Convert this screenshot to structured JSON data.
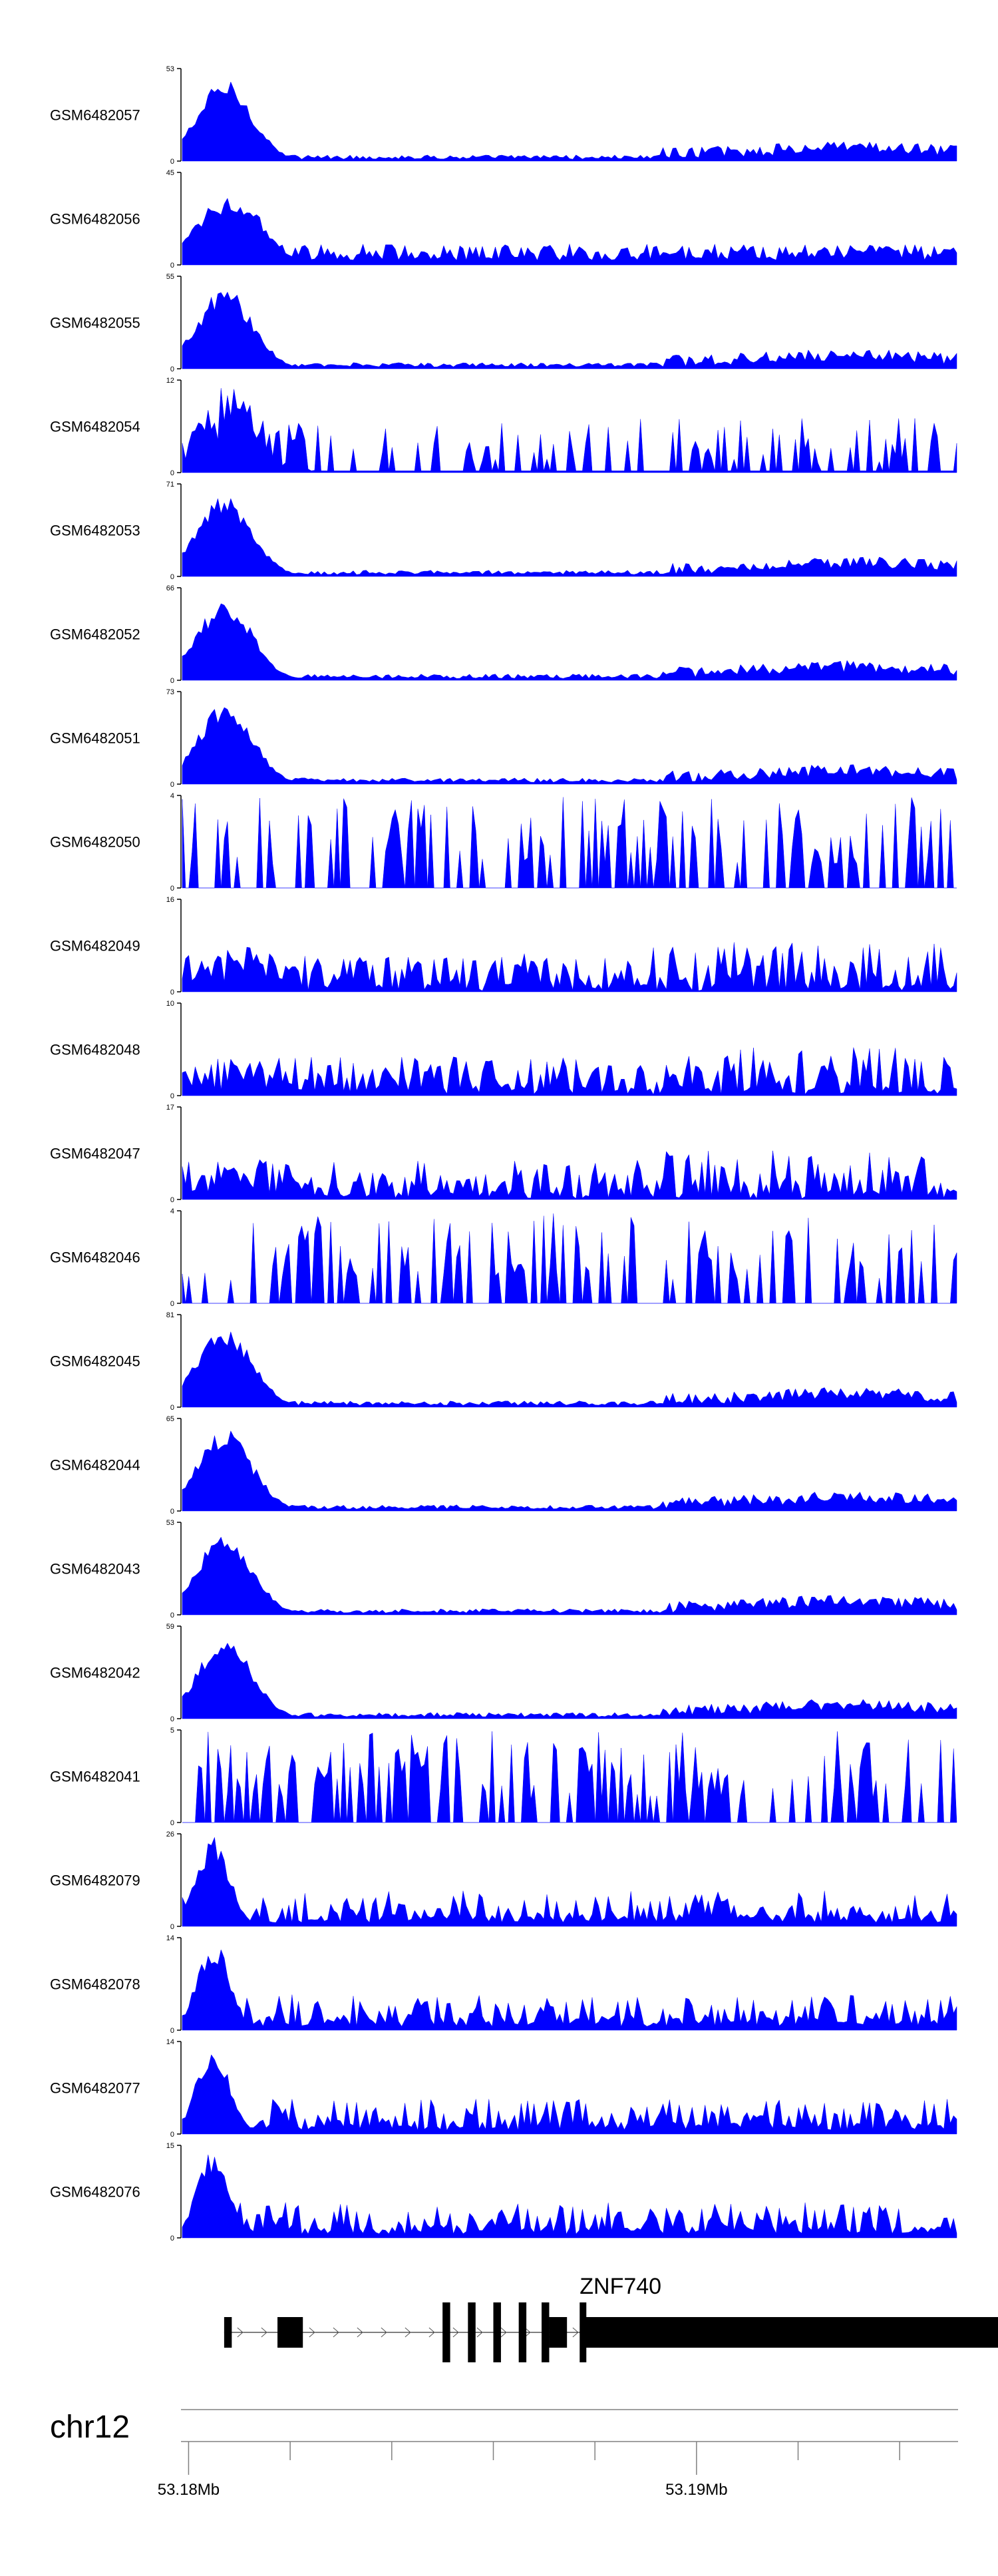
{
  "chart_data": {
    "type": "area",
    "colors": {
      "signal": "#0000ff",
      "axis": "#000000",
      "gene": "#000000",
      "chrom_line": "#808080"
    },
    "tracks": [
      {
        "name": "GSM6482057",
        "ymax": 53,
        "profile": "early_high"
      },
      {
        "name": "GSM6482056",
        "ymax": 45,
        "profile": "early_high_noisy"
      },
      {
        "name": "GSM6482055",
        "ymax": 55,
        "profile": "early_high"
      },
      {
        "name": "GSM6482054",
        "ymax": 12,
        "profile": "sparse_spiky"
      },
      {
        "name": "GSM6482053",
        "ymax": 71,
        "profile": "early_high"
      },
      {
        "name": "GSM6482052",
        "ymax": 66,
        "profile": "early_high"
      },
      {
        "name": "GSM6482051",
        "ymax": 73,
        "profile": "early_high"
      },
      {
        "name": "GSM6482050",
        "ymax": 4,
        "profile": "spiky_uniform"
      },
      {
        "name": "GSM6482049",
        "ymax": 16,
        "profile": "noisy_mid"
      },
      {
        "name": "GSM6482048",
        "ymax": 10,
        "profile": "noisy_mid"
      },
      {
        "name": "GSM6482047",
        "ymax": 17,
        "profile": "noisy_mid"
      },
      {
        "name": "GSM6482046",
        "ymax": 4,
        "profile": "spiky_uniform"
      },
      {
        "name": "GSM6482045",
        "ymax": 81,
        "profile": "early_high"
      },
      {
        "name": "GSM6482044",
        "ymax": 65,
        "profile": "early_high"
      },
      {
        "name": "GSM6482043",
        "ymax": 53,
        "profile": "early_high"
      },
      {
        "name": "GSM6482042",
        "ymax": 59,
        "profile": "early_high"
      },
      {
        "name": "GSM6482041",
        "ymax": 5,
        "profile": "spiky_uniform"
      },
      {
        "name": "GSM6482079",
        "ymax": 26,
        "profile": "early_peak_noisy"
      },
      {
        "name": "GSM6482078",
        "ymax": 14,
        "profile": "early_peak_noisy"
      },
      {
        "name": "GSM6482077",
        "ymax": 14,
        "profile": "early_peak_noisy"
      },
      {
        "name": "GSM6482076",
        "ymax": 15,
        "profile": "early_peak_noisy"
      }
    ],
    "y_min_label": "0",
    "gene": {
      "name": "ZNF740",
      "strand": "+",
      "start": 53180700,
      "end": 53196100,
      "exons": [
        {
          "start": 53180700,
          "end": 53180850,
          "kind": "utr"
        },
        {
          "start": 53181750,
          "end": 53182250,
          "kind": "utr"
        },
        {
          "start": 53185000,
          "end": 53185150,
          "kind": "cds"
        },
        {
          "start": 53185500,
          "end": 53185650,
          "kind": "cds"
        },
        {
          "start": 53186000,
          "end": 53186150,
          "kind": "cds"
        },
        {
          "start": 53186500,
          "end": 53186650,
          "kind": "cds"
        },
        {
          "start": 53186950,
          "end": 53187100,
          "kind": "cds"
        },
        {
          "start": 53187100,
          "end": 53187450,
          "kind": "utr"
        },
        {
          "start": 53187700,
          "end": 53187800,
          "kind": "cds"
        },
        {
          "start": 53187800,
          "end": 53196100,
          "kind": "utr"
        }
      ]
    },
    "chromosome": "chr12",
    "x_range": [
      53179850,
      53195150
    ],
    "x_major_ticks": [
      53180000,
      53190000
    ],
    "x_major_tick_labels": [
      "53.18Mb",
      "53.19Mb"
    ],
    "x_minor_ticks": [
      53182000,
      53184000,
      53186000,
      53188000,
      53192000,
      53194000
    ]
  }
}
